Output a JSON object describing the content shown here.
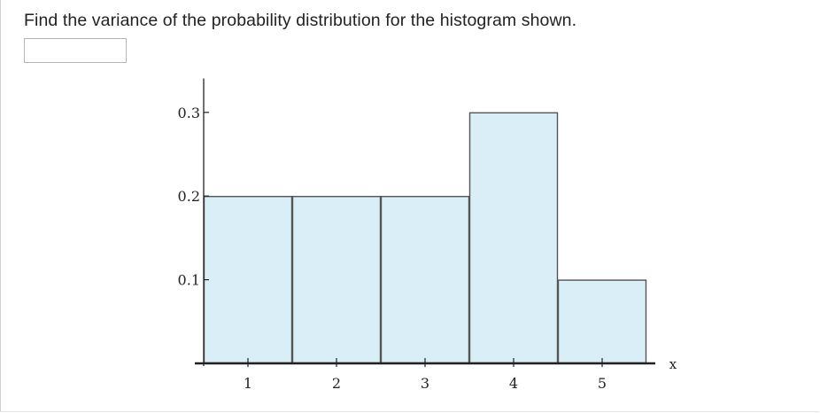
{
  "question": {
    "text": "Find the variance of the probability distribution for the histogram shown."
  },
  "answer": {
    "value": "",
    "placeholder": ""
  },
  "chart_data": {
    "type": "bar",
    "categories": [
      "1",
      "2",
      "3",
      "4",
      "5"
    ],
    "values": [
      0.2,
      0.2,
      0.2,
      0.3,
      0.1
    ],
    "x": [
      1,
      2,
      3,
      4,
      5
    ],
    "xlabel": "x",
    "ylabel": "",
    "ylim": [
      0,
      0.33
    ],
    "yticks": [
      0.1,
      0.2,
      0.3
    ],
    "ytick_labels": [
      "0.1",
      "0.2",
      "0.3"
    ],
    "xtick_labels": [
      "1",
      "2",
      "3",
      "4",
      "5"
    ],
    "grid": false,
    "bar_fill": "#daeef8",
    "bar_stroke": "#555555"
  }
}
